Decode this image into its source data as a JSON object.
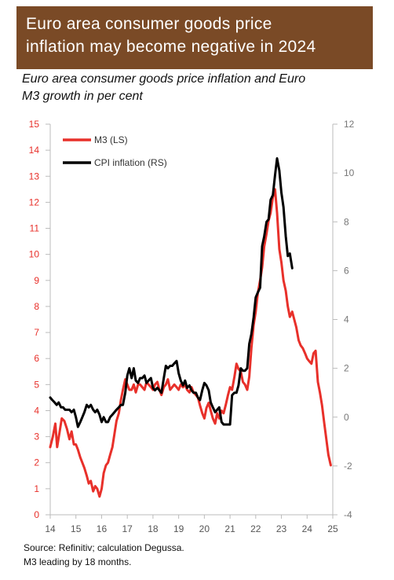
{
  "header": {
    "title_line1": "Euro area consumer goods price",
    "title_line2": "inflation may become negative in 2024",
    "subtitle_line1": "Euro area consumer goods price inflation and Euro",
    "subtitle_line2": "M3 growth in per cent"
  },
  "footer": {
    "source_line1": "Source: Refinitiv; calculation Degussa.",
    "source_line2": "M3 leading by 18 months."
  },
  "colors": {
    "title_bg": "#7a4a26",
    "m3": "#e8302a",
    "cpi": "#000000",
    "left_axis": "#e8302a",
    "right_axis": "#777777"
  },
  "chart_data": {
    "type": "line",
    "x_ticks": [
      "14",
      "15",
      "16",
      "17",
      "18",
      "19",
      "20",
      "21",
      "22",
      "23",
      "24",
      "25"
    ],
    "xlim": [
      14,
      25
    ],
    "y_left": {
      "ticks": [
        "0",
        "1",
        "2",
        "3",
        "4",
        "5",
        "6",
        "7",
        "8",
        "9",
        "10",
        "11",
        "12",
        "13",
        "14",
        "15"
      ],
      "lim": [
        0,
        15
      ]
    },
    "y_right": {
      "ticks": [
        "-4",
        "-2",
        "0",
        "2",
        "4",
        "6",
        "8",
        "10",
        "12"
      ],
      "lim": [
        -4,
        12
      ]
    },
    "legend": [
      "M3 (LS)",
      "CPI inflation (RS)"
    ],
    "legend_position": "top-left",
    "grid": false,
    "series": [
      {
        "name": "M3 (LS)",
        "axis": "left",
        "points": [
          [
            14.0,
            2.6
          ],
          [
            14.1,
            3.0
          ],
          [
            14.2,
            3.5
          ],
          [
            14.27,
            2.6
          ],
          [
            14.35,
            3.1
          ],
          [
            14.45,
            3.7
          ],
          [
            14.55,
            3.6
          ],
          [
            14.65,
            3.3
          ],
          [
            14.75,
            2.9
          ],
          [
            14.83,
            3.2
          ],
          [
            14.92,
            2.7
          ],
          [
            15.0,
            2.7
          ],
          [
            15.08,
            2.5
          ],
          [
            15.17,
            2.2
          ],
          [
            15.25,
            2.0
          ],
          [
            15.33,
            1.8
          ],
          [
            15.42,
            1.5
          ],
          [
            15.5,
            1.2
          ],
          [
            15.58,
            1.3
          ],
          [
            15.67,
            0.9
          ],
          [
            15.75,
            1.1
          ],
          [
            15.83,
            1.0
          ],
          [
            15.92,
            0.7
          ],
          [
            16.0,
            1.0
          ],
          [
            16.08,
            1.6
          ],
          [
            16.17,
            1.9
          ],
          [
            16.25,
            2.0
          ],
          [
            16.33,
            2.3
          ],
          [
            16.42,
            2.6
          ],
          [
            16.5,
            3.1
          ],
          [
            16.58,
            3.6
          ],
          [
            16.67,
            3.9
          ],
          [
            16.75,
            4.4
          ],
          [
            16.83,
            4.8
          ],
          [
            16.92,
            5.2
          ],
          [
            17.0,
            5.0
          ],
          [
            17.08,
            4.8
          ],
          [
            17.17,
            4.8
          ],
          [
            17.25,
            5.0
          ],
          [
            17.33,
            4.7
          ],
          [
            17.42,
            5.0
          ],
          [
            17.5,
            5.0
          ],
          [
            17.58,
            4.9
          ],
          [
            17.67,
            4.8
          ],
          [
            17.75,
            5.1
          ],
          [
            17.83,
            5.0
          ],
          [
            17.92,
            4.9
          ],
          [
            18.0,
            4.8
          ],
          [
            18.08,
            5.0
          ],
          [
            18.17,
            5.1
          ],
          [
            18.25,
            4.8
          ],
          [
            18.33,
            4.6
          ],
          [
            18.42,
            4.9
          ],
          [
            18.5,
            5.0
          ],
          [
            18.58,
            5.2
          ],
          [
            18.67,
            4.8
          ],
          [
            18.75,
            4.9
          ],
          [
            18.83,
            5.0
          ],
          [
            18.92,
            4.9
          ],
          [
            19.0,
            4.8
          ],
          [
            19.08,
            5.0
          ],
          [
            19.17,
            4.9
          ],
          [
            19.25,
            5.0
          ],
          [
            19.33,
            4.8
          ],
          [
            19.42,
            4.7
          ],
          [
            19.5,
            4.9
          ],
          [
            19.58,
            4.7
          ],
          [
            19.67,
            4.6
          ],
          [
            19.75,
            4.5
          ],
          [
            19.83,
            4.2
          ],
          [
            19.92,
            3.9
          ],
          [
            20.0,
            3.7
          ],
          [
            20.08,
            4.1
          ],
          [
            20.17,
            4.3
          ],
          [
            20.25,
            4.0
          ],
          [
            20.33,
            3.7
          ],
          [
            20.42,
            3.5
          ],
          [
            20.5,
            3.9
          ],
          [
            20.58,
            3.7
          ],
          [
            20.67,
            4.0
          ],
          [
            20.75,
            3.9
          ],
          [
            20.83,
            4.2
          ],
          [
            20.92,
            4.6
          ],
          [
            21.0,
            4.9
          ],
          [
            21.08,
            4.8
          ],
          [
            21.17,
            5.3
          ],
          [
            21.25,
            5.8
          ],
          [
            21.33,
            5.6
          ],
          [
            21.42,
            5.5
          ],
          [
            21.5,
            5.1
          ],
          [
            21.58,
            5.0
          ],
          [
            21.67,
            4.8
          ],
          [
            21.75,
            5.3
          ],
          [
            21.83,
            6.4
          ],
          [
            21.92,
            7.3
          ],
          [
            22.0,
            7.8
          ],
          [
            22.08,
            8.5
          ],
          [
            22.17,
            9.0
          ],
          [
            22.25,
            9.5
          ],
          [
            22.33,
            10.3
          ],
          [
            22.42,
            10.8
          ],
          [
            22.5,
            11.3
          ],
          [
            22.58,
            11.6
          ],
          [
            22.67,
            12.2
          ],
          [
            22.75,
            12.5
          ],
          [
            22.83,
            11.6
          ],
          [
            22.92,
            10.2
          ],
          [
            23.0,
            9.7
          ],
          [
            23.08,
            9.0
          ],
          [
            23.17,
            8.6
          ],
          [
            23.25,
            8.0
          ],
          [
            23.33,
            7.6
          ],
          [
            23.42,
            7.8
          ],
          [
            23.5,
            7.5
          ],
          [
            23.58,
            7.2
          ],
          [
            23.67,
            6.7
          ],
          [
            23.75,
            6.5
          ],
          [
            23.83,
            6.4
          ],
          [
            23.92,
            6.2
          ],
          [
            24.0,
            6.0
          ],
          [
            24.08,
            5.9
          ],
          [
            24.17,
            5.8
          ],
          [
            24.25,
            6.2
          ],
          [
            24.33,
            6.3
          ],
          [
            24.42,
            5.1
          ],
          [
            24.5,
            4.7
          ],
          [
            24.58,
            4.2
          ],
          [
            24.67,
            3.5
          ],
          [
            24.75,
            2.9
          ],
          [
            24.83,
            2.3
          ],
          [
            24.92,
            1.9
          ]
        ]
      },
      {
        "name": "CPI inflation (RS)",
        "axis": "right",
        "points": [
          [
            14.0,
            0.8
          ],
          [
            14.08,
            0.7
          ],
          [
            14.17,
            0.6
          ],
          [
            14.25,
            0.5
          ],
          [
            14.33,
            0.6
          ],
          [
            14.42,
            0.4
          ],
          [
            14.5,
            0.4
          ],
          [
            14.58,
            0.3
          ],
          [
            14.67,
            0.3
          ],
          [
            14.75,
            0.3
          ],
          [
            14.83,
            0.2
          ],
          [
            14.92,
            0.3
          ],
          [
            15.0,
            0.0
          ],
          [
            15.08,
            -0.4
          ],
          [
            15.17,
            -0.2
          ],
          [
            15.25,
            0.0
          ],
          [
            15.33,
            0.2
          ],
          [
            15.42,
            0.5
          ],
          [
            15.5,
            0.4
          ],
          [
            15.58,
            0.5
          ],
          [
            15.67,
            0.3
          ],
          [
            15.75,
            0.2
          ],
          [
            15.83,
            0.3
          ],
          [
            15.92,
            0.1
          ],
          [
            16.0,
            -0.2
          ],
          [
            16.08,
            0.0
          ],
          [
            16.17,
            -0.2
          ],
          [
            16.25,
            -0.2
          ],
          [
            16.33,
            0.0
          ],
          [
            16.42,
            0.1
          ],
          [
            16.5,
            0.2
          ],
          [
            16.58,
            0.3
          ],
          [
            16.67,
            0.4
          ],
          [
            16.75,
            0.5
          ],
          [
            16.83,
            0.5
          ],
          [
            16.92,
            1.0
          ],
          [
            17.0,
            1.7
          ],
          [
            17.08,
            2.0
          ],
          [
            17.17,
            1.6
          ],
          [
            17.25,
            2.0
          ],
          [
            17.33,
            1.5
          ],
          [
            17.42,
            1.4
          ],
          [
            17.5,
            1.6
          ],
          [
            17.58,
            1.6
          ],
          [
            17.67,
            1.7
          ],
          [
            17.75,
            1.4
          ],
          [
            17.83,
            1.5
          ],
          [
            17.92,
            1.6
          ],
          [
            18.0,
            1.2
          ],
          [
            18.08,
            1.1
          ],
          [
            18.17,
            1.2
          ],
          [
            18.25,
            1.1
          ],
          [
            18.33,
            1.0
          ],
          [
            18.42,
            1.6
          ],
          [
            18.5,
            2.1
          ],
          [
            18.58,
            2.0
          ],
          [
            18.67,
            2.1
          ],
          [
            18.75,
            2.1
          ],
          [
            18.83,
            2.2
          ],
          [
            18.92,
            2.3
          ],
          [
            19.0,
            1.8
          ],
          [
            19.08,
            1.5
          ],
          [
            19.17,
            1.3
          ],
          [
            19.25,
            1.5
          ],
          [
            19.33,
            1.2
          ],
          [
            19.42,
            1.3
          ],
          [
            19.5,
            1.1
          ],
          [
            19.58,
            1.0
          ],
          [
            19.67,
            1.0
          ],
          [
            19.75,
            0.8
          ],
          [
            19.83,
            0.7
          ],
          [
            19.92,
            1.1
          ],
          [
            20.0,
            1.4
          ],
          [
            20.08,
            1.3
          ],
          [
            20.17,
            1.1
          ],
          [
            20.25,
            0.6
          ],
          [
            20.33,
            0.4
          ],
          [
            20.42,
            0.2
          ],
          [
            20.5,
            0.3
          ],
          [
            20.58,
            0.4
          ],
          [
            20.67,
            -0.2
          ],
          [
            20.75,
            -0.3
          ],
          [
            20.83,
            -0.3
          ],
          [
            20.92,
            -0.3
          ],
          [
            21.0,
            -0.3
          ],
          [
            21.08,
            0.9
          ],
          [
            21.17,
            1.0
          ],
          [
            21.25,
            1.0
          ],
          [
            21.33,
            1.3
          ],
          [
            21.42,
            2.0
          ],
          [
            21.5,
            1.9
          ],
          [
            21.58,
            1.9
          ],
          [
            21.67,
            2.0
          ],
          [
            21.75,
            3.0
          ],
          [
            21.83,
            3.4
          ],
          [
            21.92,
            4.1
          ],
          [
            22.0,
            4.9
          ],
          [
            22.08,
            5.1
          ],
          [
            22.17,
            5.3
          ],
          [
            22.25,
            7.0
          ],
          [
            22.33,
            7.4
          ],
          [
            22.42,
            8.0
          ],
          [
            22.5,
            8.1
          ],
          [
            22.58,
            8.9
          ],
          [
            22.67,
            9.1
          ],
          [
            22.75,
            9.9
          ],
          [
            22.83,
            10.6
          ],
          [
            22.92,
            10.1
          ],
          [
            23.0,
            9.2
          ],
          [
            23.08,
            8.6
          ],
          [
            23.17,
            7.4
          ],
          [
            23.25,
            6.6
          ],
          [
            23.33,
            6.7
          ],
          [
            23.42,
            6.1
          ]
        ]
      }
    ]
  }
}
